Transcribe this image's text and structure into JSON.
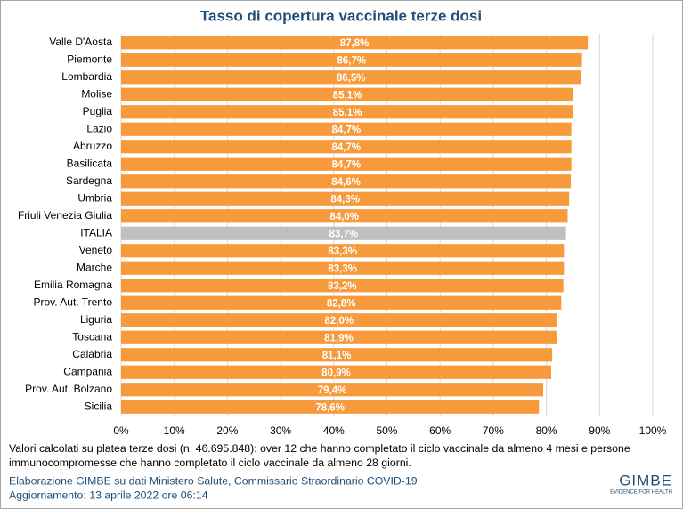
{
  "chart_data": {
    "type": "hbar",
    "title": "Tasso di copertura vaccinale terze dosi",
    "categories": [
      "Valle D'Aosta",
      "Piemonte",
      "Lombardia",
      "Molise",
      "Puglia",
      "Lazio",
      "Abruzzo",
      "Basilicata",
      "Sardegna",
      "Umbria",
      "Friuli Venezia Giulia",
      "ITALIA",
      "Veneto",
      "Marche",
      "Emilia Romagna",
      "Prov. Aut. Trento",
      "Liguria",
      "Toscana",
      "Calabria",
      "Campania",
      "Prov. Aut. Bolzano",
      "Sicilia"
    ],
    "values": [
      87.8,
      86.7,
      86.5,
      85.1,
      85.1,
      84.7,
      84.7,
      84.7,
      84.6,
      84.3,
      84.0,
      83.7,
      83.3,
      83.3,
      83.2,
      82.8,
      82.0,
      81.9,
      81.1,
      80.9,
      79.4,
      78.6
    ],
    "value_labels": [
      "87,8%",
      "86,7%",
      "86,5%",
      "85,1%",
      "85,1%",
      "84,7%",
      "84,7%",
      "84,7%",
      "84,6%",
      "84,3%",
      "84,0%",
      "83,7%",
      "83,3%",
      "83,3%",
      "83,2%",
      "82,8%",
      "82,0%",
      "81,9%",
      "81,1%",
      "80,9%",
      "79,4%",
      "78,6%"
    ],
    "colors": [
      "#f79a3b",
      "#f79a3b",
      "#f79a3b",
      "#f79a3b",
      "#f79a3b",
      "#f79a3b",
      "#f79a3b",
      "#f79a3b",
      "#f79a3b",
      "#f79a3b",
      "#f79a3b",
      "#bfbfbf",
      "#f79a3b",
      "#f79a3b",
      "#f79a3b",
      "#f79a3b",
      "#f79a3b",
      "#f79a3b",
      "#f79a3b",
      "#f79a3b",
      "#f79a3b",
      "#f79a3b"
    ],
    "xlim": [
      0,
      100
    ],
    "xticks": [
      {
        "value": 0,
        "label": "0%"
      },
      {
        "value": 10,
        "label": "10%"
      },
      {
        "value": 20,
        "label": "20%"
      },
      {
        "value": 30,
        "label": "30%"
      },
      {
        "value": 40,
        "label": "40%"
      },
      {
        "value": 50,
        "label": "50%"
      },
      {
        "value": 60,
        "label": "60%"
      },
      {
        "value": 70,
        "label": "70%"
      },
      {
        "value": 80,
        "label": "80%"
      },
      {
        "value": 90,
        "label": "90%"
      },
      {
        "value": 100,
        "label": "100%"
      }
    ],
    "grid": true,
    "note": "Valori calcolati su platea terze dosi (n. 46.695.848): over 12 che hanno completato il ciclo vaccinale da almeno 4 mesi e persone immunocompromesse che hanno completato il ciclo vaccinale da almeno 28 giorni.",
    "source": "Elaborazione GIMBE su dati Ministero Salute, Commissario Straordinario COVID-19",
    "updated": "Aggiornamento: 13 aprile 2022 ore 06:14",
    "logo": "GIMBE",
    "logo_tagline": "EVIDENCE FOR HEALTH"
  }
}
